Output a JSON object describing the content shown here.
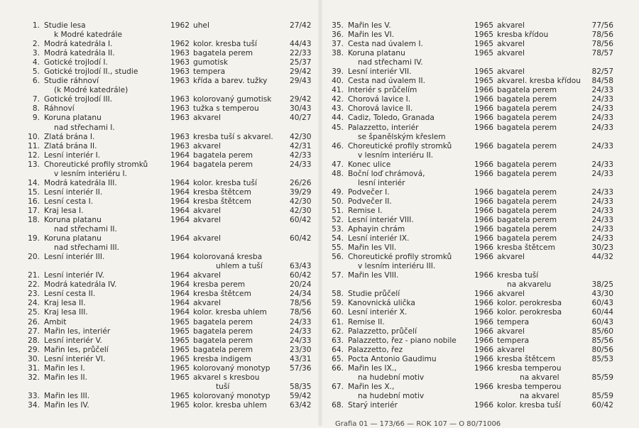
{
  "left_column": [
    {
      "no": "1.",
      "title": [
        "Studie lesa",
        "k Modré katedrále"
      ],
      "year": "1962",
      "medium": [
        "uhel"
      ],
      "dims": "27/42"
    },
    {
      "no": "2.",
      "title": [
        "Modrá katedrála I."
      ],
      "year": "1962",
      "medium": [
        "kolor. kresba tuší"
      ],
      "dims": "44/43"
    },
    {
      "no": "3.",
      "title": [
        "Modrá katedrála II."
      ],
      "year": "1963",
      "medium": [
        "bagatela perem"
      ],
      "dims": "22/33"
    },
    {
      "no": "4.",
      "title": [
        "Gotické trojlodí I."
      ],
      "year": "1963",
      "medium": [
        "gumotisk"
      ],
      "dims": "25/37"
    },
    {
      "no": "5.",
      "title": [
        "Gotické trojlodí II., studie"
      ],
      "year": "1963",
      "medium": [
        "tempera"
      ],
      "dims": "29/42"
    },
    {
      "no": "6.",
      "title": [
        "Studie ráhnoví",
        "(k Modré katedrále)"
      ],
      "year": "1963",
      "medium": [
        "křída a barev. tužky"
      ],
      "dims": "29/43"
    },
    {
      "no": "7.",
      "title": [
        "Gotické trojlodí III."
      ],
      "year": "1963",
      "medium": [
        "kolorovaný gumotisk"
      ],
      "dims": "29/42"
    },
    {
      "no": "8.",
      "title": [
        "Ráhnoví"
      ],
      "year": "1963",
      "medium": [
        "tužka s temperou"
      ],
      "dims": "30/43"
    },
    {
      "no": "9.",
      "title": [
        "Koruna platanu",
        "nad střechami I."
      ],
      "year": "1963",
      "medium": [
        "akvarel"
      ],
      "dims": "40/27"
    },
    {
      "no": "10.",
      "title": [
        "Zlatá brána I."
      ],
      "year": "1963",
      "medium": [
        "kresba tuší s akvarel."
      ],
      "dims": "42/30"
    },
    {
      "no": "11.",
      "title": [
        "Zlatá brána II."
      ],
      "year": "1963",
      "medium": [
        "akvarel"
      ],
      "dims": "42/31"
    },
    {
      "no": "12.",
      "title": [
        "Lesní interiér I."
      ],
      "year": "1964",
      "medium": [
        "bagatela perem"
      ],
      "dims": "42/33"
    },
    {
      "no": "13.",
      "title": [
        "Choreutické profily stromků",
        "v lesním interiéru I."
      ],
      "year": "1964",
      "medium": [
        "bagatela perem"
      ],
      "dims": "24/33"
    },
    {
      "no": "14.",
      "title": [
        "Modrá katedrála III."
      ],
      "year": "1964",
      "medium": [
        "kolor. kresba tuší"
      ],
      "dims": "26/26"
    },
    {
      "no": "15.",
      "title": [
        "Lesní interiér II."
      ],
      "year": "1964",
      "medium": [
        "kresba štětcem"
      ],
      "dims": "39/29"
    },
    {
      "no": "16.",
      "title": [
        "Lesní cesta I."
      ],
      "year": "1964",
      "medium": [
        "kresba štětcem"
      ],
      "dims": "42/30"
    },
    {
      "no": "17.",
      "title": [
        "Kraj lesa I."
      ],
      "year": "1964",
      "medium": [
        "akvarel"
      ],
      "dims": "42/30"
    },
    {
      "no": "18.",
      "title": [
        "Koruna platanu",
        "nad střechami II."
      ],
      "year": "1964",
      "medium": [
        "akvarel"
      ],
      "dims": "60/42"
    },
    {
      "no": "19.",
      "title": [
        "Koruna platanu",
        "nad střechami III."
      ],
      "year": "1964",
      "medium": [
        "akvarel"
      ],
      "dims": "60/42"
    },
    {
      "no": "20.",
      "title": [
        "Lesní interiér III."
      ],
      "year": "1964",
      "medium": [
        "kolorovaná kresba",
        "uhlem a tuší"
      ],
      "dims": "63/43"
    },
    {
      "no": "21.",
      "title": [
        "Lesní interiér IV."
      ],
      "year": "1964",
      "medium": [
        "akvarel"
      ],
      "dims": "60/42"
    },
    {
      "no": "22.",
      "title": [
        "Modrá katedrála IV."
      ],
      "year": "1964",
      "medium": [
        "kresba perem"
      ],
      "dims": "20/24"
    },
    {
      "no": "23.",
      "title": [
        "Lesní cesta II."
      ],
      "year": "1964",
      "medium": [
        "kresba štětcem"
      ],
      "dims": "24/34"
    },
    {
      "no": "24.",
      "title": [
        "Kraj lesa II."
      ],
      "year": "1964",
      "medium": [
        "akvarel"
      ],
      "dims": "78/56"
    },
    {
      "no": "25.",
      "title": [
        "Kraj lesa III."
      ],
      "year": "1964",
      "medium": [
        "kolor. kresba uhlem"
      ],
      "dims": "78/56"
    },
    {
      "no": "26.",
      "title": [
        "Ambit"
      ],
      "year": "1965",
      "medium": [
        "bagatela perem"
      ],
      "dims": "24/33"
    },
    {
      "no": "27.",
      "title": [
        "Mařin les, interiér"
      ],
      "year": "1965",
      "medium": [
        "bagatela perem"
      ],
      "dims": "24/33"
    },
    {
      "no": "28.",
      "title": [
        "Lesní interiér V."
      ],
      "year": "1965",
      "medium": [
        "bagatela perem"
      ],
      "dims": "24/33"
    },
    {
      "no": "29.",
      "title": [
        "Mařin les, průčelí"
      ],
      "year": "1965",
      "medium": [
        "bagatela perem"
      ],
      "dims": "23/30"
    },
    {
      "no": "30.",
      "title": [
        "Lesní interiér VI."
      ],
      "year": "1965",
      "medium": [
        "kresba indigem"
      ],
      "dims": "43/31"
    },
    {
      "no": "31.",
      "title": [
        "Mařin les I."
      ],
      "year": "1965",
      "medium": [
        "kolorovaný monotyp"
      ],
      "dims": "57/36"
    },
    {
      "no": "32.",
      "title": [
        "Mařin les II."
      ],
      "year": "1965",
      "medium": [
        "akvarel s kresbou",
        "tuší"
      ],
      "dims": "58/35"
    },
    {
      "no": "33.",
      "title": [
        "Mařin les III."
      ],
      "year": "1965",
      "medium": [
        "kolorovaný monotyp"
      ],
      "dims": "59/42"
    },
    {
      "no": "34.",
      "title": [
        "Mařin les IV."
      ],
      "year": "1965",
      "medium": [
        "kolor. kresba uhlem"
      ],
      "dims": "63/42"
    }
  ],
  "right_column": [
    {
      "no": "35.",
      "title": [
        "Mařin les V."
      ],
      "year": "1965",
      "medium": [
        "akvarel"
      ],
      "dims": "77/56"
    },
    {
      "no": "36.",
      "title": [
        "Mařin les VI."
      ],
      "year": "1965",
      "medium": [
        "kresba křídou"
      ],
      "dims": "78/56"
    },
    {
      "no": "37.",
      "title": [
        "Cesta nad úvalem I."
      ],
      "year": "1965",
      "medium": [
        "akvarel"
      ],
      "dims": "78/56"
    },
    {
      "no": "38.",
      "title": [
        "Koruna platanu",
        "nad střechami IV."
      ],
      "year": "1965",
      "medium": [
        "akvarel"
      ],
      "dims": "78/57"
    },
    {
      "no": "39.",
      "title": [
        "Lesní interiér VII."
      ],
      "year": "1965",
      "medium": [
        "akvarel"
      ],
      "dims": "82/57"
    },
    {
      "no": "40.",
      "title": [
        "Cesta nad úvalem II."
      ],
      "year": "1965",
      "medium": [
        "akvarel. kresba křídou"
      ],
      "dims": "84/58"
    },
    {
      "no": "41.",
      "title": [
        "Interiér s průčelím"
      ],
      "year": "1966",
      "medium": [
        "bagatela perem"
      ],
      "dims": "24/33"
    },
    {
      "no": "42.",
      "title": [
        "Chorová lavice I."
      ],
      "year": "1966",
      "medium": [
        "bagatela perem"
      ],
      "dims": "24/33"
    },
    {
      "no": "43.",
      "title": [
        "Chorová lavice II."
      ],
      "year": "1966",
      "medium": [
        "bagatela perem"
      ],
      "dims": "24/33"
    },
    {
      "no": "44.",
      "title": [
        "Cadiz, Toledo, Granada"
      ],
      "year": "1966",
      "medium": [
        "bagatela perem"
      ],
      "dims": "24/33"
    },
    {
      "no": "45.",
      "title": [
        "Palazzetto, interiér",
        "se španělským křeslem"
      ],
      "year": "1966",
      "medium": [
        "bagatela perem"
      ],
      "dims": "24/33"
    },
    {
      "no": "46.",
      "title": [
        "Choreutické profily stromků",
        "v lesním interiéru II."
      ],
      "year": "1966",
      "medium": [
        "bagatela perem"
      ],
      "dims": "24/33"
    },
    {
      "no": "47.",
      "title": [
        "Konec ulice"
      ],
      "year": "1966",
      "medium": [
        "bagatela perem"
      ],
      "dims": "24/33"
    },
    {
      "no": "48.",
      "title": [
        "Boční loď chrámová,",
        "lesní interiér"
      ],
      "year": "1966",
      "medium": [
        "bagatela perem"
      ],
      "dims": "24/33"
    },
    {
      "no": "49.",
      "title": [
        "Podvečer I."
      ],
      "year": "1966",
      "medium": [
        "bagatela perem"
      ],
      "dims": "24/33"
    },
    {
      "no": "50.",
      "title": [
        "Podvečer II."
      ],
      "year": "1966",
      "medium": [
        "bagatela perem"
      ],
      "dims": "24/33"
    },
    {
      "no": "51.",
      "title": [
        "Remise I."
      ],
      "year": "1966",
      "medium": [
        "bagatela perem"
      ],
      "dims": "24/33"
    },
    {
      "no": "52.",
      "title": [
        "Lesní interiér VIII."
      ],
      "year": "1966",
      "medium": [
        "bagatela perem"
      ],
      "dims": "24/33"
    },
    {
      "no": "53.",
      "title": [
        "Aphayin chrám"
      ],
      "year": "1966",
      "medium": [
        "bagatela perem"
      ],
      "dims": "24/33"
    },
    {
      "no": "54.",
      "title": [
        "Lesní interiér IX."
      ],
      "year": "1966",
      "medium": [
        "bagatela perem"
      ],
      "dims": "24/33"
    },
    {
      "no": "55.",
      "title": [
        "Mařin les VII."
      ],
      "year": "1966",
      "medium": [
        "kresba štětcem"
      ],
      "dims": "30/23"
    },
    {
      "no": "56.",
      "title": [
        "Choreutické profily stromků",
        "v lesním interiéru III."
      ],
      "year": "1966",
      "medium": [
        "akvarel"
      ],
      "dims": "44/32"
    },
    {
      "no": "57.",
      "title": [
        "Mařin les VIII."
      ],
      "year": "1966",
      "medium": [
        "kresba tuší",
        "na akvarelu"
      ],
      "dims": "38/25"
    },
    {
      "no": "58.",
      "title": [
        "Studie průčelí"
      ],
      "year": "1966",
      "medium": [
        "akvarel"
      ],
      "dims": "43/30"
    },
    {
      "no": "59.",
      "title": [
        "Kanovnická ulička"
      ],
      "year": "1966",
      "medium": [
        "kolor. perokresba"
      ],
      "dims": "60/43"
    },
    {
      "no": "60.",
      "title": [
        "Lesní interiér X."
      ],
      "year": "1966",
      "medium": [
        "kolor. perokresba"
      ],
      "dims": "60/44"
    },
    {
      "no": "61.",
      "title": [
        "Remise II."
      ],
      "year": "1966",
      "medium": [
        "tempera"
      ],
      "dims": "60/43"
    },
    {
      "no": "62.",
      "title": [
        "Palazzetto, průčelí"
      ],
      "year": "1966",
      "medium": [
        "akvarel"
      ],
      "dims": "85/60"
    },
    {
      "no": "63.",
      "title": [
        "Palazzetto, řez - piano nobile"
      ],
      "year": "1966",
      "medium": [
        "tempera"
      ],
      "dims": "85/56"
    },
    {
      "no": "64.",
      "title": [
        "Palazzetto, řez"
      ],
      "year": "1966",
      "medium": [
        "akvarel"
      ],
      "dims": "80/56"
    },
    {
      "no": "65.",
      "title": [
        "Pocta Antonio Gaudimu"
      ],
      "year": "1966",
      "medium": [
        "kresba štětcem"
      ],
      "dims": "85/53"
    },
    {
      "no": "66.",
      "title": [
        "Mařin les IX.,",
        "na hudební motiv"
      ],
      "year": "1966",
      "medium": [
        "kresba temperou",
        "na akvarel"
      ],
      "dims": "85/59"
    },
    {
      "no": "67.",
      "title": [
        "Mařin les X.,",
        "na hudební motiv"
      ],
      "year": "1966",
      "medium": [
        "kresba temperou",
        "na akvarel"
      ],
      "dims": "85/59"
    },
    {
      "no": "68.",
      "title": [
        "Starý interiér"
      ],
      "year": "1966",
      "medium": [
        "kolor. kresba tuší"
      ],
      "dims": "60/42"
    }
  ],
  "footer": "Grafia 01 — 173/66 — ROK 107 — O 80/71006"
}
